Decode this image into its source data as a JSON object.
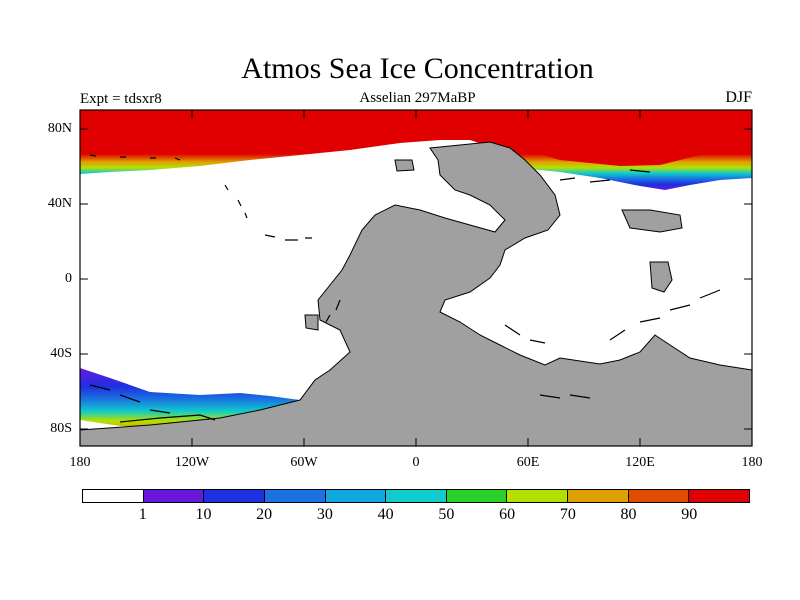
{
  "title": "Atmos Sea Ice Concentration",
  "expt_label": "Expt = tdsxr8",
  "subtitle": "Asselian 297MaBP",
  "season": "DJF",
  "map": {
    "projection": "cylindrical-equidistant",
    "lat_ticks": [
      "80N",
      "40N",
      "0",
      "40S",
      "80S"
    ],
    "lon_ticks": [
      "180",
      "120W",
      "60W",
      "0",
      "60E",
      "120E",
      "180"
    ],
    "land_color": "#a0a0a0",
    "ocean_nonice_color": "#ffffff"
  },
  "colorbar": {
    "colors": [
      "#ffffff",
      "#6a18e0",
      "#1e30e0",
      "#1a72e0",
      "#12a6e0",
      "#10cccc",
      "#28d028",
      "#b4e000",
      "#e0a000",
      "#e04c00",
      "#e00000"
    ],
    "labels": [
      "1",
      "10",
      "20",
      "30",
      "40",
      "50",
      "60",
      "70",
      "80",
      "90"
    ]
  }
}
